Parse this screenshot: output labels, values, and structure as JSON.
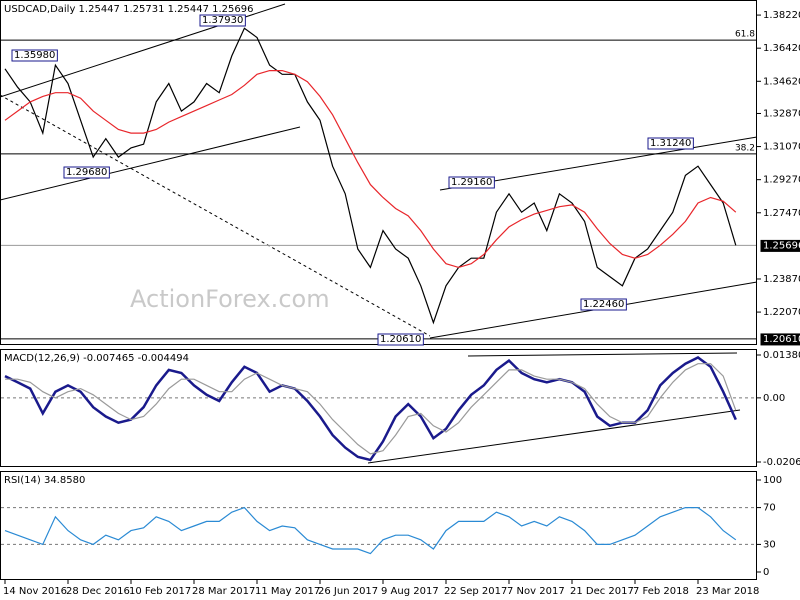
{
  "chart_data": [
    {
      "type": "line",
      "title": "USDCAD,Daily  1.25447 1.25731 1.25447 1.25696",
      "watermark": "ActionForex.com",
      "categories": [
        "14 Nov 2016",
        null,
        null,
        null,
        null,
        "28 Dec 2016",
        null,
        null,
        null,
        null,
        "10 Feb 2017",
        null,
        null,
        null,
        null,
        "28 Mar 2017",
        null,
        null,
        null,
        null,
        "11 May 2017",
        null,
        null,
        null,
        null,
        "26 Jun 2017",
        null,
        null,
        null,
        null,
        "9 Aug 2017",
        null,
        null,
        null,
        null,
        "22 Sep 2017",
        null,
        null,
        null,
        null,
        "7 Nov 2017",
        null,
        null,
        null,
        null,
        "21 Dec 2017",
        null,
        null,
        null,
        null,
        "7 Feb 2018",
        null,
        null,
        null,
        null,
        "23 Mar 2018",
        null,
        null,
        null
      ],
      "series": [
        {
          "name": "USDCAD",
          "color": "#000000",
          "values": [
            1.353,
            1.343,
            1.335,
            1.318,
            1.355,
            1.345,
            1.325,
            1.305,
            1.315,
            1.305,
            1.31,
            1.312,
            1.335,
            1.345,
            1.33,
            1.335,
            1.345,
            1.34,
            1.36,
            1.375,
            1.37,
            1.355,
            1.35,
            1.35,
            1.335,
            1.325,
            1.3,
            1.285,
            1.255,
            1.245,
            1.265,
            1.255,
            1.25,
            1.235,
            1.215,
            1.235,
            1.245,
            1.25,
            1.25,
            1.275,
            1.285,
            1.275,
            1.28,
            1.265,
            1.285,
            1.28,
            1.27,
            1.245,
            1.24,
            1.235,
            1.25,
            1.255,
            1.265,
            1.275,
            1.295,
            1.3,
            1.29,
            1.28,
            1.257
          ]
        },
        {
          "name": "MA",
          "color": "#e8262b",
          "values": [
            1.325,
            1.33,
            1.335,
            1.338,
            1.34,
            1.34,
            1.337,
            1.33,
            1.325,
            1.32,
            1.318,
            1.318,
            1.32,
            1.324,
            1.327,
            1.33,
            1.333,
            1.336,
            1.339,
            1.344,
            1.35,
            1.352,
            1.352,
            1.35,
            1.346,
            1.338,
            1.328,
            1.315,
            1.302,
            1.29,
            1.283,
            1.277,
            1.273,
            1.265,
            1.255,
            1.247,
            1.245,
            1.247,
            1.252,
            1.26,
            1.267,
            1.271,
            1.274,
            1.276,
            1.278,
            1.279,
            1.275,
            1.266,
            1.258,
            1.252,
            1.25,
            1.252,
            1.257,
            1.263,
            1.27,
            1.28,
            1.283,
            1.281,
            1.275
          ]
        }
      ],
      "ylim": [
        1.2028,
        1.3904
      ],
      "yticks": [
        {
          "value": 1.3822,
          "label": "1.38220"
        },
        {
          "value": 1.3642,
          "label": "1.36420"
        },
        {
          "value": 1.3462,
          "label": "1.34620"
        },
        {
          "value": 1.3287,
          "label": "1.32870"
        },
        {
          "value": 1.3107,
          "label": "1.31070"
        },
        {
          "value": 1.2927,
          "label": "1.29270"
        },
        {
          "value": 1.2747,
          "label": "1.27470"
        },
        {
          "value": 1.2387,
          "label": "1.23870"
        },
        {
          "value": 1.2207,
          "label": "1.22070"
        }
      ],
      "highlight_ticks": [
        {
          "value": 1.25696,
          "label": "1.25696"
        },
        {
          "value": 1.2061,
          "label": "1.20610"
        }
      ],
      "fib_levels": [
        {
          "value": 1.3686,
          "label": "61.8"
        },
        {
          "value": 1.3067,
          "label": "38.2"
        }
      ],
      "annotations": [
        "1.37930",
        "1.35980",
        "1.29680",
        "1.20610",
        "1.29160",
        "1.22460",
        "1.31240"
      ]
    },
    {
      "type": "line",
      "title": "MACD(12,26,9) -0.007465 -0.004494",
      "series": [
        {
          "name": "MACD",
          "color": "#1a1a8c",
          "values": [
            0.007,
            0.005,
            0.003,
            -0.005,
            0.002,
            0.004,
            0.002,
            -0.003,
            -0.006,
            -0.008,
            -0.007,
            -0.003,
            0.004,
            0.009,
            0.008,
            0.004,
            0.001,
            -0.001,
            0.005,
            0.01,
            0.008,
            0.002,
            0.004,
            0.003,
            -0.001,
            -0.006,
            -0.012,
            -0.016,
            -0.019,
            -0.02,
            -0.014,
            -0.006,
            -0.002,
            -0.006,
            -0.013,
            -0.01,
            -0.004,
            0.001,
            0.004,
            0.009,
            0.012,
            0.008,
            0.006,
            0.005,
            0.006,
            0.005,
            0.002,
            -0.006,
            -0.009,
            -0.008,
            -0.008,
            -0.004,
            0.004,
            0.008,
            0.011,
            0.013,
            0.01,
            0.002,
            -0.007
          ]
        },
        {
          "name": "Signal",
          "color": "#9a9a9a",
          "values": [
            0.006,
            0.006,
            0.005,
            0.002,
            0.0,
            0.002,
            0.003,
            0.001,
            -0.002,
            -0.005,
            -0.007,
            -0.006,
            -0.002,
            0.003,
            0.006,
            0.006,
            0.004,
            0.002,
            0.002,
            0.006,
            0.008,
            0.006,
            0.004,
            0.003,
            0.002,
            -0.002,
            -0.007,
            -0.011,
            -0.015,
            -0.018,
            -0.017,
            -0.012,
            -0.006,
            -0.005,
            -0.009,
            -0.011,
            -0.008,
            -0.003,
            0.001,
            0.005,
            0.009,
            0.009,
            0.007,
            0.006,
            0.006,
            0.005,
            0.003,
            -0.002,
            -0.006,
            -0.008,
            -0.008,
            -0.006,
            0.0,
            0.005,
            0.009,
            0.011,
            0.011,
            0.007,
            -0.004
          ]
        }
      ],
      "ylim": [
        -0.022258,
        0.015412
      ],
      "yticks": [
        0.013802,
        {
          "value": 0,
          "label": "0.00"
        },
        -0.020648
      ],
      "dashed_levels": [
        0
      ]
    },
    {
      "type": "line",
      "title": "RSI(14) 34.8580",
      "series": [
        {
          "name": "RSI",
          "color": "#2a8ad4",
          "values": [
            45,
            40,
            35,
            30,
            60,
            45,
            35,
            30,
            40,
            35,
            45,
            48,
            60,
            55,
            45,
            50,
            55,
            55,
            65,
            70,
            55,
            45,
            50,
            48,
            35,
            30,
            25,
            25,
            25,
            20,
            35,
            40,
            40,
            35,
            25,
            45,
            55,
            55,
            55,
            65,
            60,
            50,
            55,
            50,
            60,
            55,
            45,
            30,
            30,
            35,
            40,
            50,
            60,
            65,
            70,
            70,
            60,
            45,
            35
          ]
        }
      ],
      "ylim": [
        -8.7,
        108.7
      ],
      "yticks": [
        100,
        70,
        30,
        0
      ],
      "dashed_levels": [
        70,
        30
      ]
    }
  ]
}
